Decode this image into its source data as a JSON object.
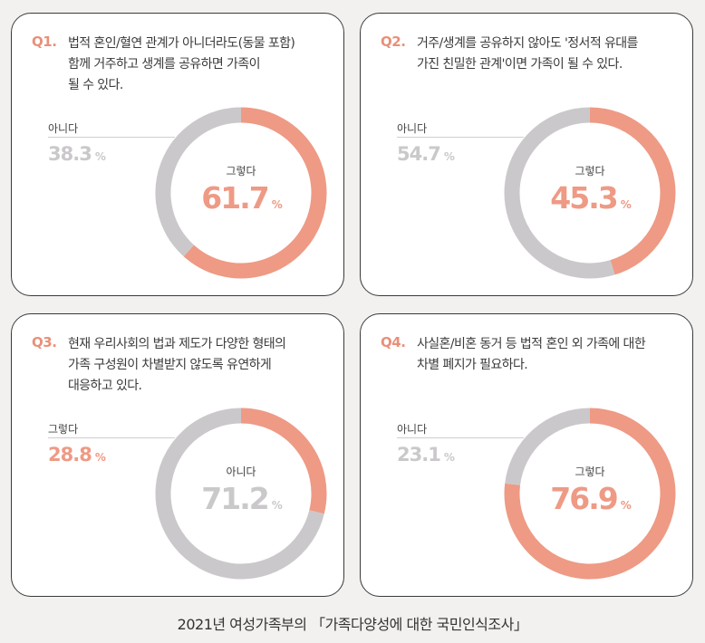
{
  "colors": {
    "agree": "#ee9a85",
    "disagree": "#cbc8cb",
    "border": "#3a3a3a"
  },
  "cards": [
    {
      "qnum": "Q1.",
      "lines": [
        "법적 혼인/혈연 관계가 아니더라도(동물 포함)",
        "함께 거주하고 생계를 공유하면 가족이",
        "될 수 있다."
      ],
      "side_label": "아니다",
      "side_value": "38.3",
      "side_unit": "%",
      "center_label": "그렇다",
      "center_value": "61.7",
      "center_unit": "%"
    },
    {
      "qnum": "Q2.",
      "lines": [
        "거주/생계를 공유하지 않아도 '정서적 유대를",
        "가진 친밀한 관계'이면 가족이 될 수 있다."
      ],
      "side_label": "아니다",
      "side_value": "54.7",
      "side_unit": "%",
      "center_label": "그렇다",
      "center_value": "45.3",
      "center_unit": "%"
    },
    {
      "qnum": "Q3.",
      "lines": [
        "현재 우리사회의 법과 제도가 다양한 형태의",
        "가족 구성원이 차별받지 않도록 유연하게",
        "대응하고 있다."
      ],
      "side_label": "그렇다",
      "side_value": "28.8",
      "side_unit": "%",
      "center_label": "아니다",
      "center_value": "71.2",
      "center_unit": "%"
    },
    {
      "qnum": "Q4.",
      "lines": [
        "사실혼/비혼 동거 등 법적 혼인 외 가족에 대한",
        "차별 폐지가 필요하다."
      ],
      "side_label": "아니다",
      "side_value": "23.1",
      "side_unit": "%",
      "center_label": "그렇다",
      "center_value": "76.9",
      "center_unit": "%"
    }
  ],
  "chart_data": [
    {
      "type": "pie",
      "title": "Q1.",
      "categories": [
        "그렇다",
        "아니다"
      ],
      "values": [
        61.7,
        38.3
      ]
    },
    {
      "type": "pie",
      "title": "Q2.",
      "categories": [
        "그렇다",
        "아니다"
      ],
      "values": [
        45.3,
        54.7
      ]
    },
    {
      "type": "pie",
      "title": "Q3.",
      "categories": [
        "그렇다",
        "아니다"
      ],
      "values": [
        28.8,
        71.2
      ]
    },
    {
      "type": "pie",
      "title": "Q4.",
      "categories": [
        "그렇다",
        "아니다"
      ],
      "values": [
        76.9,
        23.1
      ]
    }
  ],
  "footer": "2021년 여성가족부의 「가족다양성에 대한 국민인식조사」"
}
